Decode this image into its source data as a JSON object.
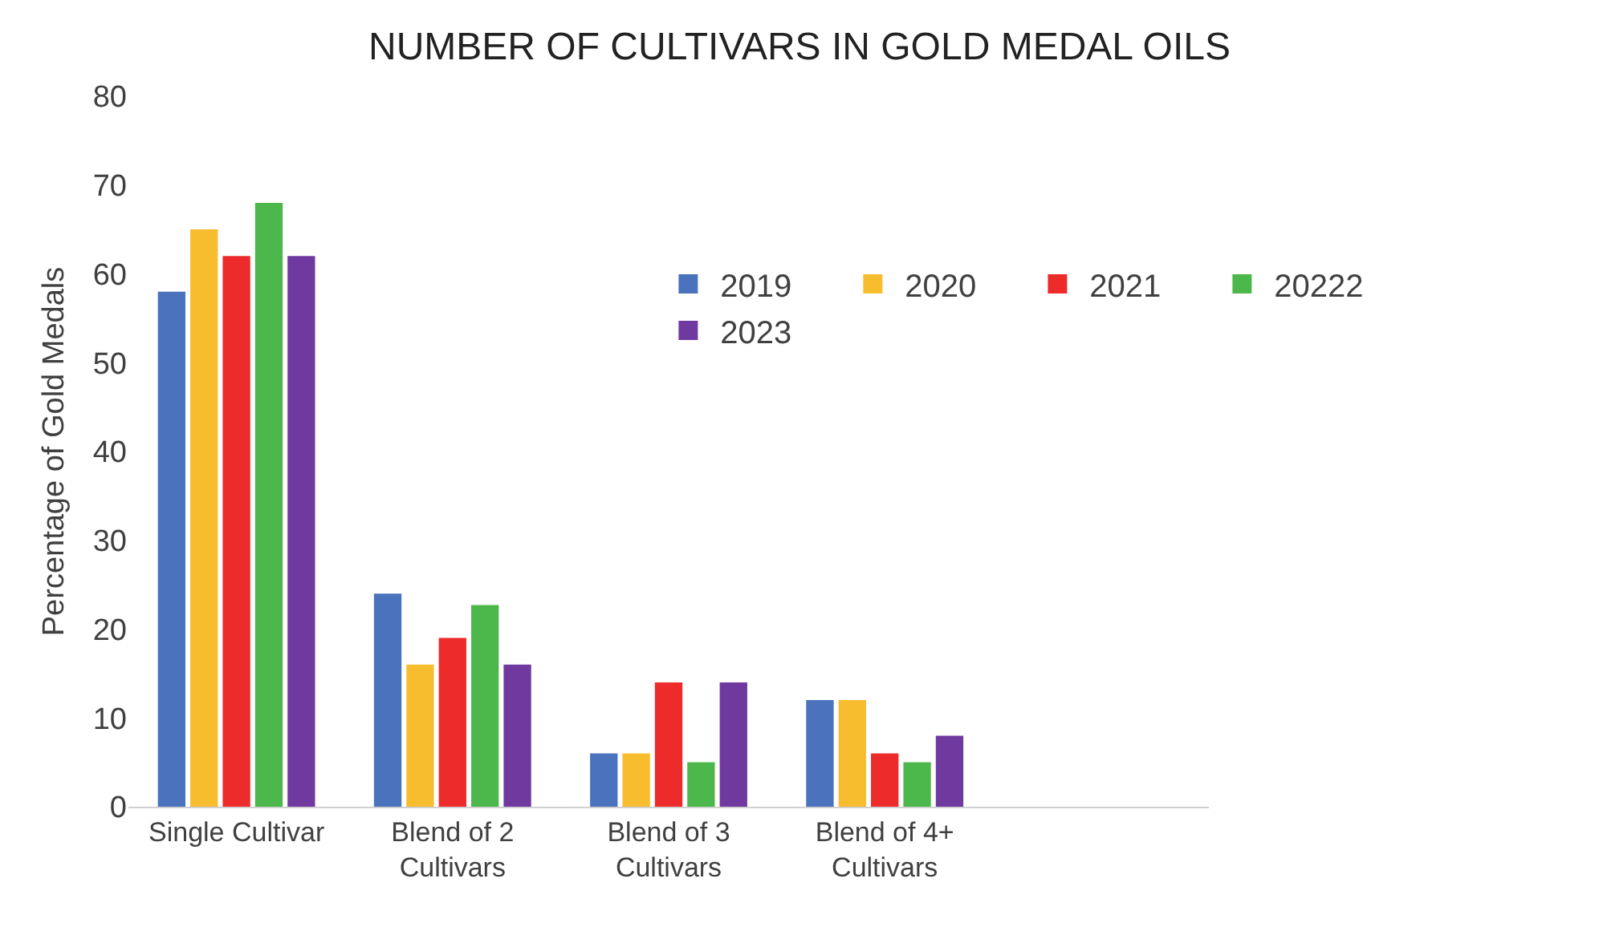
{
  "chart_data": {
    "type": "bar",
    "title": "NUMBER OF CULTIVARS IN GOLD MEDAL OILS",
    "ylabel": "Percentage of Gold Medals",
    "categories": [
      "Single Cultivar",
      "Blend of 2 Cultivars",
      "Blend of 3 Cultivars",
      "Blend of 4+ Cultivars",
      null
    ],
    "series": [
      {
        "name": "2019",
        "color": "#4a72bd",
        "values": [
          58,
          24,
          6,
          12,
          null
        ]
      },
      {
        "name": "2020",
        "color": "#f7bd2f",
        "values": [
          65,
          16,
          6,
          12,
          null
        ]
      },
      {
        "name": "2021",
        "color": "#ee2b2b",
        "values": [
          62,
          19,
          14,
          6,
          null
        ]
      },
      {
        "name": "20222",
        "color": "#4cb84c",
        "values": [
          68,
          22.7,
          5,
          5,
          null
        ]
      },
      {
        "name": "2023",
        "color": "#7039a0",
        "values": [
          62,
          16,
          14,
          8,
          null
        ]
      }
    ],
    "ylim": [
      0,
      80
    ],
    "yticks": [
      0,
      10,
      20,
      30,
      40,
      50,
      60,
      70,
      80
    ],
    "grid": false,
    "legend": "right"
  }
}
